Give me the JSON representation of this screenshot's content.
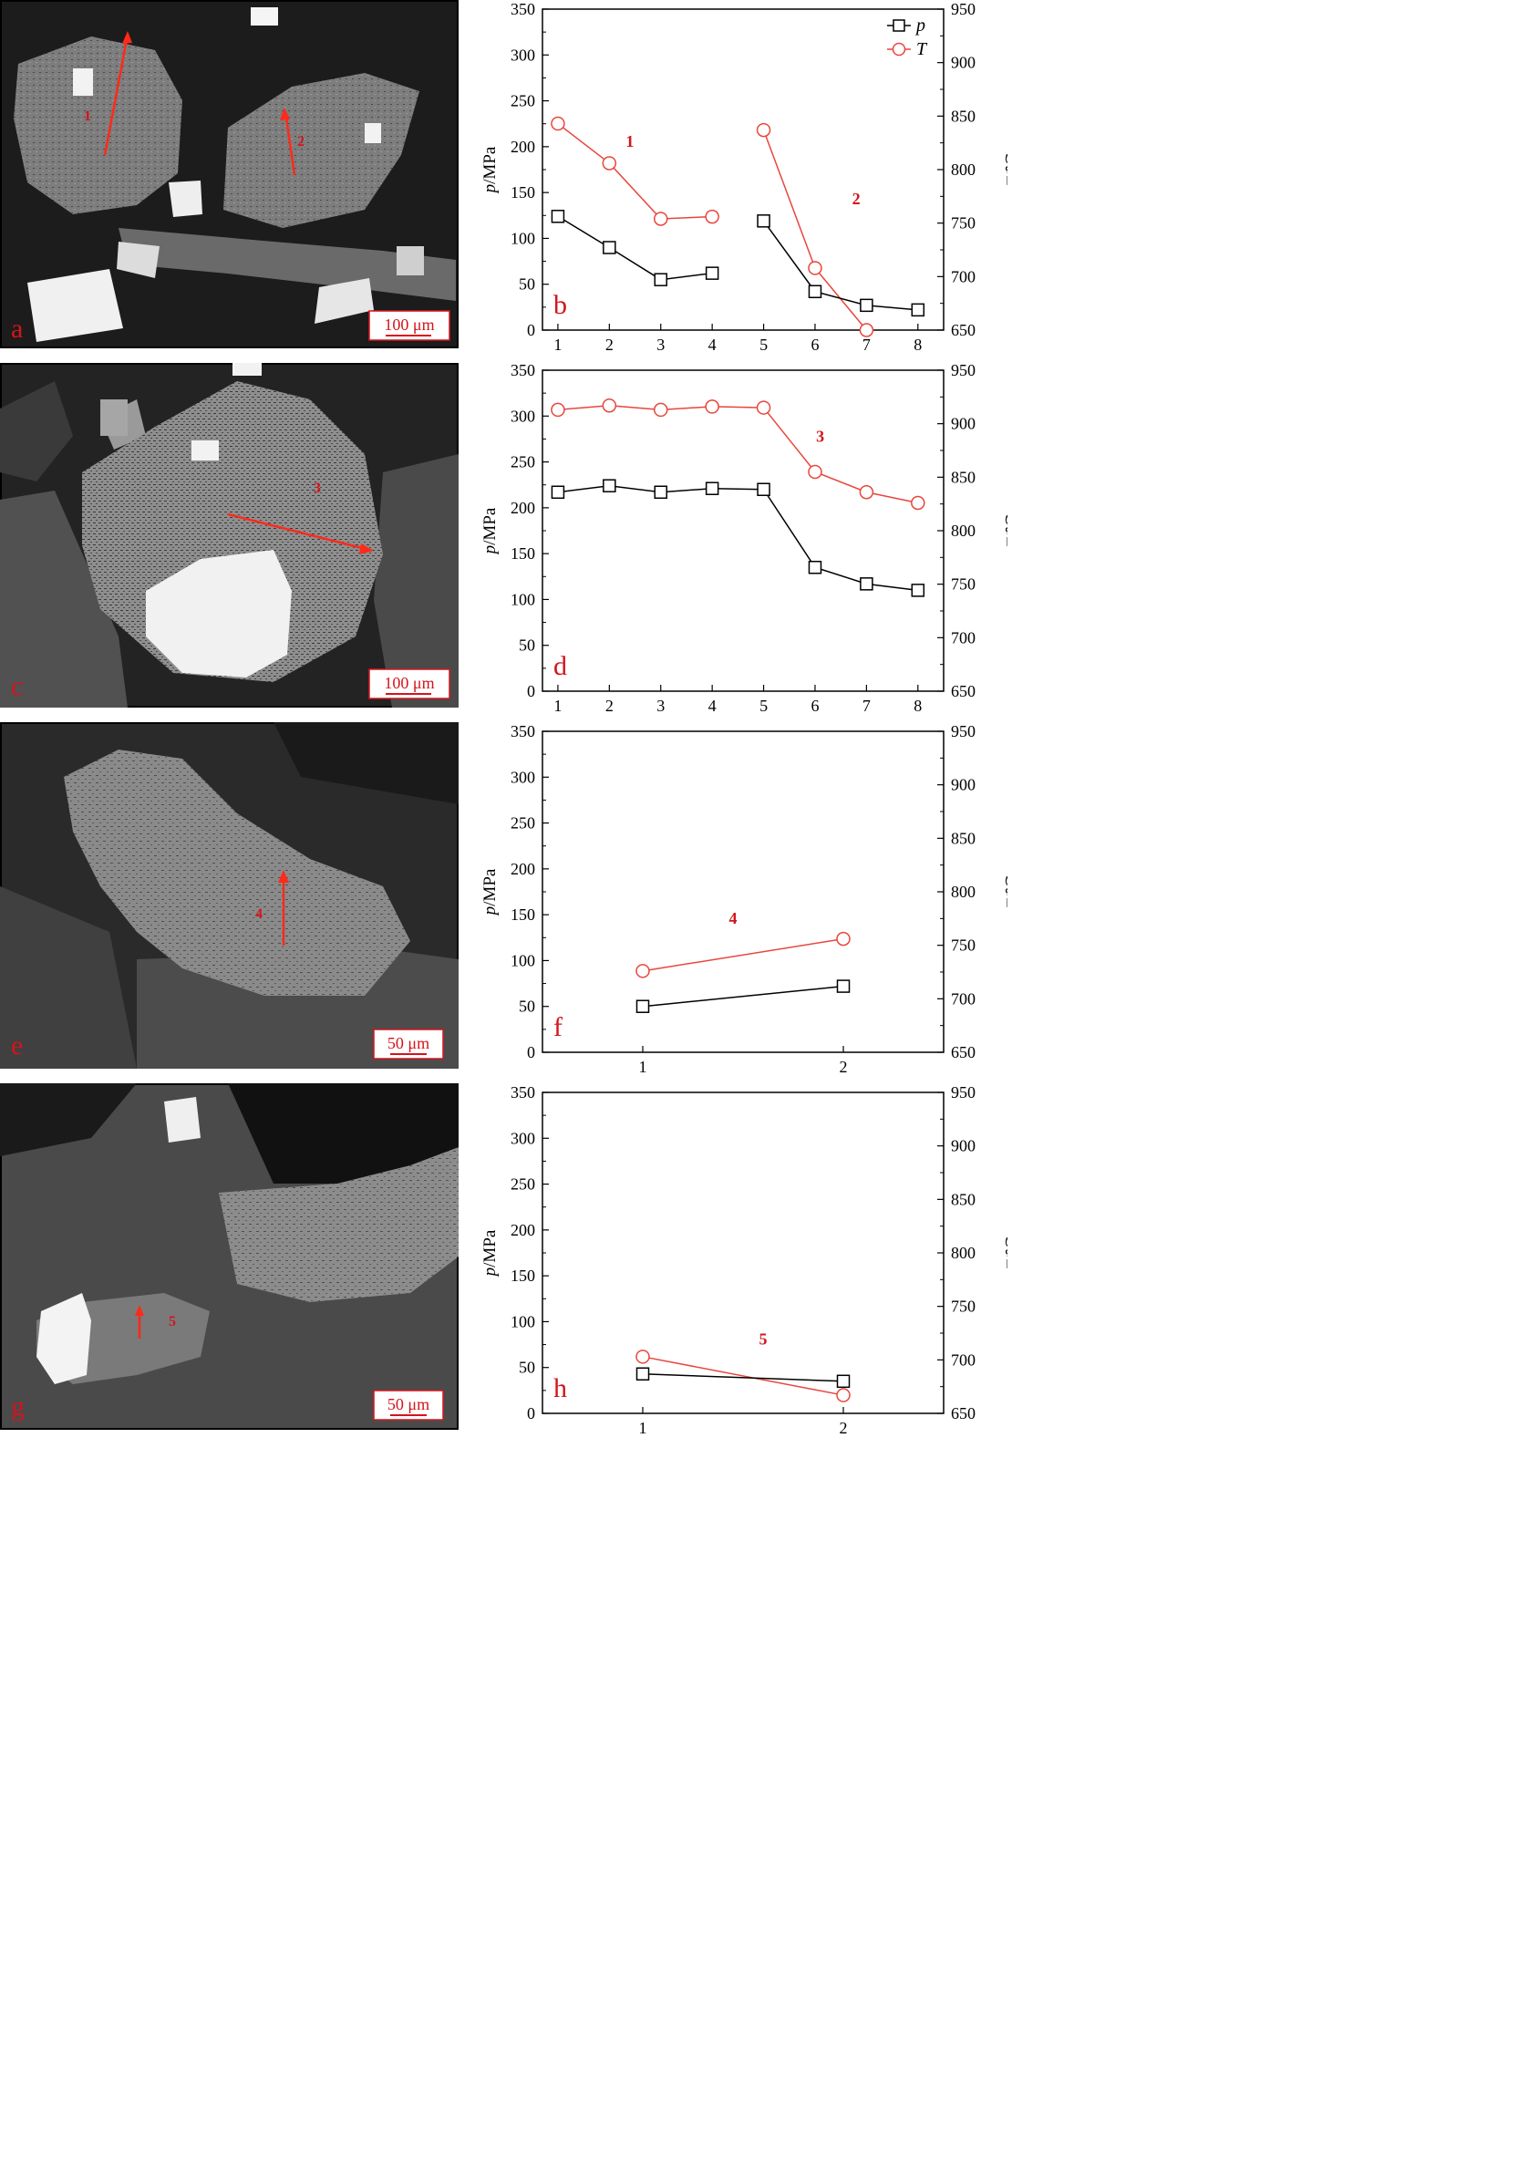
{
  "images": [
    {
      "letter": "a",
      "scale": "100 μm",
      "markers": [
        "1",
        "2"
      ]
    },
    {
      "letter": "c",
      "scale": "100 μm",
      "markers": [
        "3"
      ]
    },
    {
      "letter": "e",
      "scale": "50 μm",
      "markers": [
        "4"
      ]
    },
    {
      "letter": "g",
      "scale": "50 μm",
      "markers": [
        "5"
      ]
    }
  ],
  "legend": {
    "p_label": "p",
    "T_label": "T"
  },
  "colors": {
    "p": "#000000",
    "T": "#e8463c",
    "annot": "#d4141c"
  },
  "chart_data": [
    {
      "type": "line",
      "panel": "b",
      "ylabel": "p/MPa",
      "y2label": "T/℃",
      "ylim": [
        0,
        350
      ],
      "y2lim": [
        650,
        950
      ],
      "xlim": [
        0.7,
        8.5
      ],
      "xticks": [
        1,
        2,
        3,
        4,
        5,
        6,
        7,
        8
      ],
      "legend": "top-right",
      "annotations": [
        {
          "text": "1",
          "x": 2.4,
          "y": 200
        },
        {
          "text": "2",
          "x": 6.8,
          "y": 137
        }
      ],
      "segments": [
        {
          "x": [
            1,
            2,
            3,
            4
          ],
          "p": [
            124,
            90,
            55,
            62
          ],
          "T": [
            843,
            806,
            754,
            756
          ]
        },
        {
          "x": [
            5,
            6,
            7,
            8
          ],
          "p": [
            119,
            42,
            27,
            22
          ],
          "T": [
            837,
            708,
            650,
            null
          ]
        }
      ]
    },
    {
      "type": "line",
      "panel": "d",
      "ylabel": "p/MPa",
      "y2label": "T/℃",
      "ylim": [
        0,
        350
      ],
      "y2lim": [
        650,
        950
      ],
      "xlim": [
        0.7,
        8.5
      ],
      "xticks": [
        1,
        2,
        3,
        4,
        5,
        6,
        7,
        8
      ],
      "annotations": [
        {
          "text": "3",
          "x": 6.1,
          "y": 272
        }
      ],
      "segments": [
        {
          "x": [
            1,
            2,
            3,
            4,
            5,
            6,
            7,
            8
          ],
          "p": [
            217,
            224,
            217,
            221,
            220,
            135,
            117,
            110
          ],
          "T": [
            913,
            917,
            913,
            916,
            915,
            855,
            836,
            826
          ]
        }
      ]
    },
    {
      "type": "line",
      "panel": "f",
      "ylabel": "p/MPa",
      "y2label": "T/℃",
      "ylim": [
        0,
        350
      ],
      "y2lim": [
        650,
        950
      ],
      "xlim": [
        0.5,
        2.5
      ],
      "xticks": [
        1,
        2
      ],
      "annotations": [
        {
          "text": "4",
          "x": 1.45,
          "y": 140
        }
      ],
      "segments": [
        {
          "x": [
            1,
            2
          ],
          "p": [
            50,
            72
          ],
          "T": [
            726,
            756
          ]
        }
      ]
    },
    {
      "type": "line",
      "panel": "h",
      "ylabel": "p/MPa",
      "y2label": "T/℃",
      "ylim": [
        0,
        350
      ],
      "y2lim": [
        650,
        950
      ],
      "xlim": [
        0.5,
        2.5
      ],
      "xticks": [
        1,
        2
      ],
      "annotations": [
        {
          "text": "5",
          "x": 1.6,
          "y": 75
        }
      ],
      "segments": [
        {
          "x": [
            1,
            2
          ],
          "p": [
            43,
            35
          ],
          "T": [
            703,
            667
          ]
        }
      ]
    }
  ]
}
